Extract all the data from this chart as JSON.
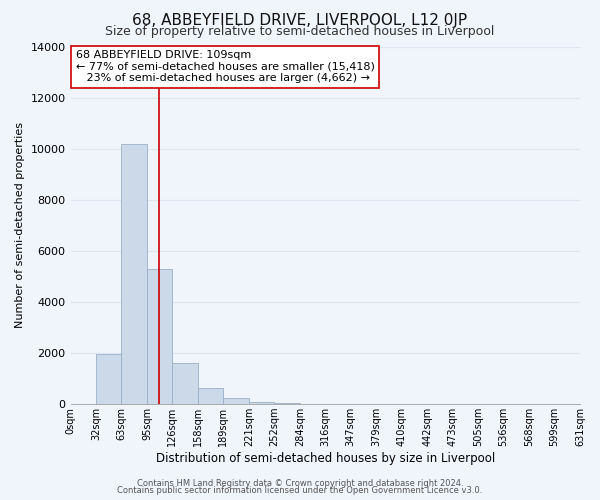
{
  "title": "68, ABBEYFIELD DRIVE, LIVERPOOL, L12 0JP",
  "subtitle": "Size of property relative to semi-detached houses in Liverpool",
  "xlabel": "Distribution of semi-detached houses by size in Liverpool",
  "ylabel": "Number of semi-detached properties",
  "bar_color": "#ccd9e8",
  "bar_edge_color": "#9ab0c8",
  "vline_color": "#cc0000",
  "vline_x": 109,
  "annotation_title": "68 ABBEYFIELD DRIVE: 109sqm",
  "annotation_line1": "← 77% of semi-detached houses are smaller (15,418)",
  "annotation_line2": "   23% of semi-detached houses are larger (4,662) →",
  "footer1": "Contains HM Land Registry data © Crown copyright and database right 2024.",
  "footer2": "Contains public sector information licensed under the Open Government Licence v3.0.",
  "bin_edges": [
    0,
    32,
    63,
    95,
    126,
    158,
    189,
    221,
    252,
    284,
    316,
    347,
    379,
    410,
    442,
    473,
    505,
    536,
    568,
    599,
    631
  ],
  "bin_labels": [
    "0sqm",
    "32sqm",
    "63sqm",
    "95sqm",
    "126sqm",
    "158sqm",
    "189sqm",
    "221sqm",
    "252sqm",
    "284sqm",
    "316sqm",
    "347sqm",
    "379sqm",
    "410sqm",
    "442sqm",
    "473sqm",
    "505sqm",
    "536sqm",
    "568sqm",
    "599sqm",
    "631sqm"
  ],
  "counts": [
    0,
    1950,
    10200,
    5300,
    1600,
    650,
    230,
    100,
    50,
    20,
    10,
    5,
    0,
    0,
    0,
    0,
    0,
    0,
    0,
    0
  ],
  "ylim": [
    0,
    14000
  ],
  "yticks": [
    0,
    2000,
    4000,
    6000,
    8000,
    10000,
    12000,
    14000
  ],
  "background_color": "#f0f4fb",
  "title_fontsize": 11,
  "subtitle_fontsize": 9,
  "annotation_box_facecolor": "white",
  "annotation_box_edgecolor": "#cc0000",
  "grid_color": "#dde5f0"
}
